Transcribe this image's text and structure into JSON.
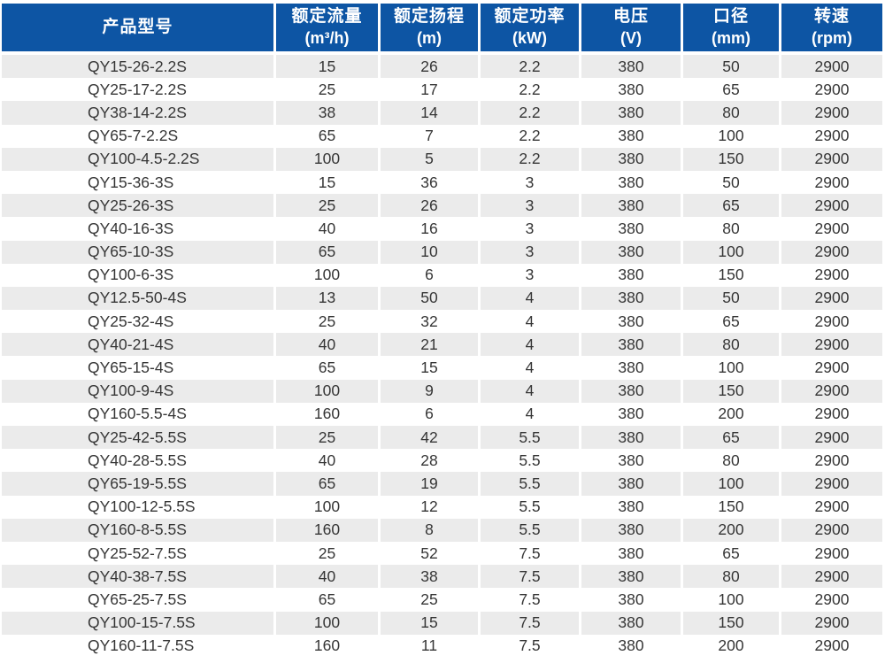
{
  "colors": {
    "header_bg": "#0d55a4",
    "header_text": "#ffffff",
    "row_alt_bg": "#ebebeb",
    "row_bg": "#ffffff",
    "body_text": "#363636"
  },
  "table": {
    "columns": [
      {
        "key": "model",
        "title": "产品型号",
        "unit": ""
      },
      {
        "key": "flow",
        "title": "额定流量",
        "unit": "(m³/h)"
      },
      {
        "key": "head",
        "title": "额定扬程",
        "unit": "(m)"
      },
      {
        "key": "power",
        "title": "额定功率",
        "unit": "(kW)"
      },
      {
        "key": "voltage",
        "title": "电压",
        "unit": "(V)"
      },
      {
        "key": "diameter",
        "title": "口径",
        "unit": "(mm)"
      },
      {
        "key": "speed",
        "title": "转速",
        "unit": "(rpm)"
      }
    ],
    "rows": [
      [
        "QY15-26-2.2S",
        "15",
        "26",
        "2.2",
        "380",
        "50",
        "2900"
      ],
      [
        "QY25-17-2.2S",
        "25",
        "17",
        "2.2",
        "380",
        "65",
        "2900"
      ],
      [
        "QY38-14-2.2S",
        "38",
        "14",
        "2.2",
        "380",
        "80",
        "2900"
      ],
      [
        "QY65-7-2.2S",
        "65",
        "7",
        "2.2",
        "380",
        "100",
        "2900"
      ],
      [
        "QY100-4.5-2.2S",
        "100",
        "5",
        "2.2",
        "380",
        "150",
        "2900"
      ],
      [
        "QY15-36-3S",
        "15",
        "36",
        "3",
        "380",
        "50",
        "2900"
      ],
      [
        "QY25-26-3S",
        "25",
        "26",
        "3",
        "380",
        "65",
        "2900"
      ],
      [
        "QY40-16-3S",
        "40",
        "16",
        "3",
        "380",
        "80",
        "2900"
      ],
      [
        "QY65-10-3S",
        "65",
        "10",
        "3",
        "380",
        "100",
        "2900"
      ],
      [
        "QY100-6-3S",
        "100",
        "6",
        "3",
        "380",
        "150",
        "2900"
      ],
      [
        "QY12.5-50-4S",
        "13",
        "50",
        "4",
        "380",
        "50",
        "2900"
      ],
      [
        "QY25-32-4S",
        "25",
        "32",
        "4",
        "380",
        "65",
        "2900"
      ],
      [
        "QY40-21-4S",
        "40",
        "21",
        "4",
        "380",
        "80",
        "2900"
      ],
      [
        "QY65-15-4S",
        "65",
        "15",
        "4",
        "380",
        "100",
        "2900"
      ],
      [
        "QY100-9-4S",
        "100",
        "9",
        "4",
        "380",
        "150",
        "2900"
      ],
      [
        "QY160-5.5-4S",
        "160",
        "6",
        "4",
        "380",
        "200",
        "2900"
      ],
      [
        "QY25-42-5.5S",
        "25",
        "42",
        "5.5",
        "380",
        "65",
        "2900"
      ],
      [
        "QY40-28-5.5S",
        "40",
        "28",
        "5.5",
        "380",
        "80",
        "2900"
      ],
      [
        "QY65-19-5.5S",
        "65",
        "19",
        "5.5",
        "380",
        "100",
        "2900"
      ],
      [
        "QY100-12-5.5S",
        "100",
        "12",
        "5.5",
        "380",
        "150",
        "2900"
      ],
      [
        "QY160-8-5.5S",
        "160",
        "8",
        "5.5",
        "380",
        "200",
        "2900"
      ],
      [
        "QY25-52-7.5S",
        "25",
        "52",
        "7.5",
        "380",
        "65",
        "2900"
      ],
      [
        "QY40-38-7.5S",
        "40",
        "38",
        "7.5",
        "380",
        "80",
        "2900"
      ],
      [
        "QY65-25-7.5S",
        "65",
        "25",
        "7.5",
        "380",
        "100",
        "2900"
      ],
      [
        "QY100-15-7.5S",
        "100",
        "15",
        "7.5",
        "380",
        "150",
        "2900"
      ],
      [
        "QY160-11-7.5S",
        "160",
        "11",
        "7.5",
        "380",
        "200",
        "2900"
      ]
    ]
  }
}
